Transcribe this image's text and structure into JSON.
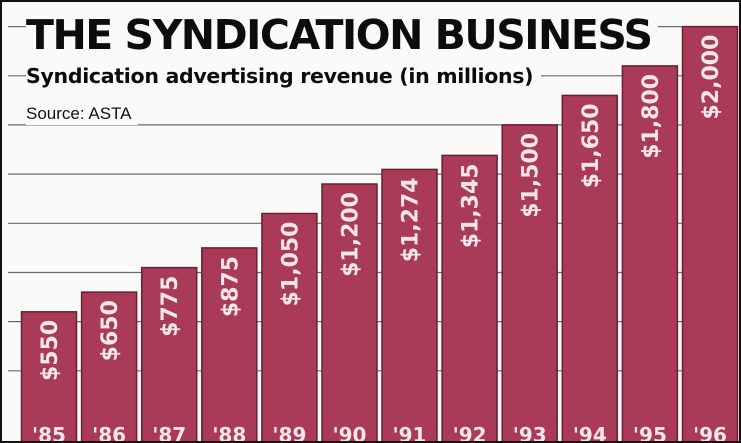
{
  "header": {
    "title": "THE SYNDICATION BUSINESS",
    "subtitle": "Syndication advertising revenue (in millions)",
    "source": "Source: ASTA"
  },
  "colors": {
    "bar": "#a93a58",
    "bar_edge": "#6e1d34",
    "label_text": "#f4e6ea",
    "gridline": "#6b6b6b",
    "background": "#fbfafa"
  },
  "chart_data": {
    "type": "bar",
    "title": "THE SYNDICATION BUSINESS",
    "subtitle": "Syndication advertising revenue (in millions)",
    "source": "Source: ASTA",
    "categories": [
      "'85",
      "'86",
      "'87",
      "'88",
      "'89",
      "'90",
      "'91",
      "'92",
      "'93",
      "'94",
      "'95",
      "'96"
    ],
    "values": [
      550,
      650,
      775,
      875,
      1050,
      1200,
      1274,
      1345,
      1500,
      1650,
      1800,
      2000
    ],
    "value_labels": [
      "$550",
      "$650",
      "$775",
      "$875",
      "$1,050",
      "$1,200",
      "$1,274",
      "$1,345",
      "$1,500",
      "$1,650",
      "$1,800",
      "$2,000"
    ],
    "xlabel": "",
    "ylabel": "",
    "ylim": [
      0,
      2000
    ],
    "grid": true,
    "legend": "none"
  }
}
